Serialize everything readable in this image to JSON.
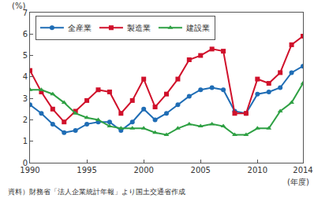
{
  "chart_data": {
    "type": "line",
    "ylabel": "(%)",
    "xlabel": "(年度)",
    "source": "資料）財務省「法人企業統計年報」より国土交通省作成",
    "x": [
      1990,
      1991,
      1992,
      1993,
      1994,
      1995,
      1996,
      1997,
      1998,
      1999,
      2000,
      2001,
      2002,
      2003,
      2004,
      2005,
      2006,
      2007,
      2008,
      2009,
      2010,
      2011,
      2012,
      2013,
      2014
    ],
    "series": [
      {
        "name": "全産業",
        "color": "#1f6db5",
        "marker": "circle",
        "line_style": "solid",
        "values": [
          2.7,
          2.3,
          1.8,
          1.4,
          1.5,
          1.8,
          1.9,
          1.9,
          1.5,
          1.9,
          2.5,
          2.0,
          2.3,
          2.7,
          3.1,
          3.4,
          3.5,
          3.4,
          2.4,
          2.3,
          3.2,
          3.3,
          3.5,
          4.2,
          4.5
        ]
      },
      {
        "name": "製造業",
        "color": "#d0112b",
        "marker": "square",
        "line_style": "solid",
        "values": [
          4.3,
          3.3,
          2.5,
          1.9,
          2.4,
          2.9,
          3.4,
          3.3,
          2.3,
          2.9,
          3.9,
          2.6,
          3.2,
          3.9,
          4.8,
          5.0,
          5.3,
          5.2,
          2.3,
          2.3,
          3.9,
          3.7,
          4.2,
          5.5,
          5.9
        ]
      },
      {
        "name": "建設業",
        "color": "#2ea043",
        "marker": "triangle-up",
        "line_style": "solid",
        "values": [
          3.4,
          3.4,
          3.2,
          2.8,
          2.3,
          2.1,
          2.0,
          1.7,
          1.6,
          1.6,
          1.6,
          1.4,
          1.3,
          1.6,
          1.8,
          1.7,
          1.8,
          1.7,
          1.3,
          1.3,
          1.6,
          1.6,
          2.4,
          2.8,
          3.7
        ]
      }
    ],
    "xlim": [
      1990,
      2014
    ],
    "xticks": [
      1990,
      1995,
      2000,
      2005,
      2010,
      2014
    ],
    "ylim": [
      0,
      7
    ],
    "yticks": [
      0,
      1,
      2,
      3,
      4,
      5,
      6,
      7
    ],
    "grid": false,
    "legend": "top-left"
  }
}
